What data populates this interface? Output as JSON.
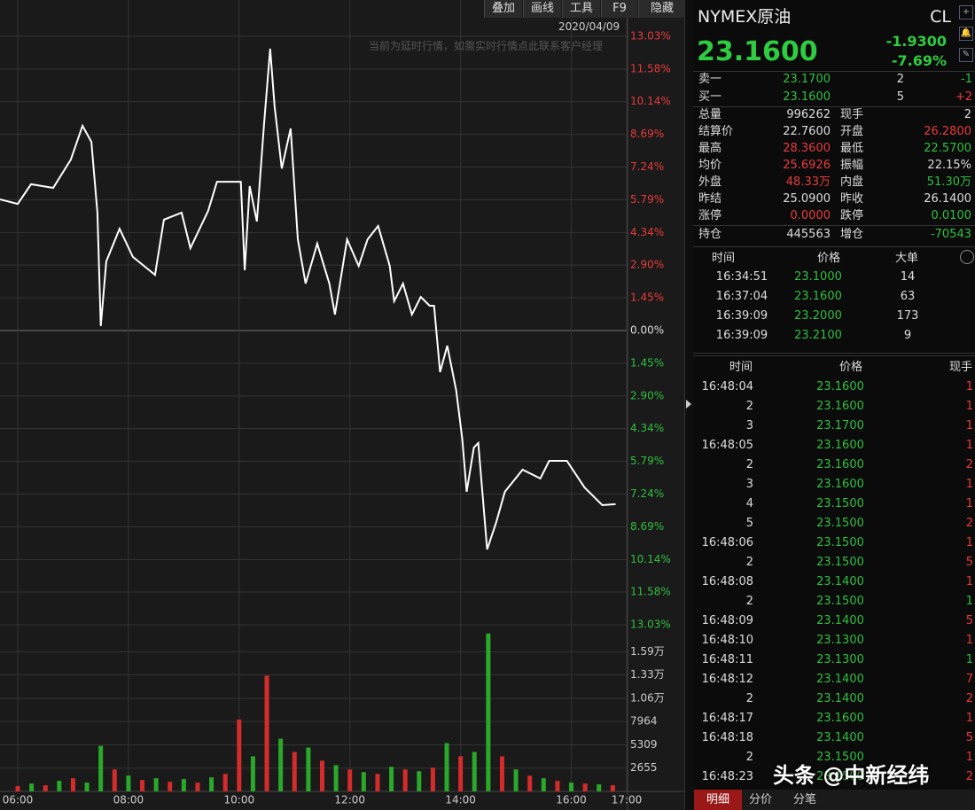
{
  "toolbar": [
    "叠加",
    "画线",
    "工具",
    "F9",
    "隐藏"
  ],
  "date": "2020/04/09",
  "notice": "当前为延时行情，如需实时行情点此联系客户经理",
  "quote": {
    "name": "NYMEX原油",
    "code": "CL",
    "price": "23.1600",
    "change": "-1.9300",
    "change_pct": "-7.69%"
  },
  "orderbook": [
    {
      "label": "卖一",
      "price": "23.1700",
      "vol": "2",
      "delta": "-1"
    },
    {
      "label": "买一",
      "price": "23.1600",
      "vol": "5",
      "delta": "+2"
    }
  ],
  "stats": [
    [
      {
        "label": "总量",
        "value": "996262",
        "color": "#dddddd"
      },
      {
        "label": "现手",
        "value": "2",
        "color": "#dddddd"
      }
    ],
    [
      {
        "label": "结算价",
        "value": "22.7600",
        "color": "#dddddd"
      },
      {
        "label": "开盘",
        "value": "26.2800",
        "color": "#e83a3a"
      }
    ],
    [
      {
        "label": "最高",
        "value": "28.3600",
        "color": "#e83a3a"
      },
      {
        "label": "最低",
        "value": "22.5700",
        "color": "#2fbf3f"
      }
    ],
    [
      {
        "label": "均价",
        "value": "25.6926",
        "color": "#e83a3a"
      },
      {
        "label": "振幅",
        "value": "22.15%",
        "color": "#dddddd"
      }
    ],
    [
      {
        "label": "外盘",
        "value": "48.33万",
        "color": "#e83a3a"
      },
      {
        "label": "内盘",
        "value": "51.30万",
        "color": "#2fbf3f"
      }
    ],
    [
      {
        "label": "昨结",
        "value": "25.0900",
        "color": "#dddddd"
      },
      {
        "label": "昨收",
        "value": "26.1400",
        "color": "#dddddd"
      }
    ],
    [
      {
        "label": "涨停",
        "value": "0.0000",
        "color": "#e83a3a"
      },
      {
        "label": "跌停",
        "value": "0.0100",
        "color": "#2fbf3f"
      }
    ],
    [
      {
        "label": "持仓",
        "value": "445563",
        "color": "#dddddd"
      },
      {
        "label": "增仓",
        "value": "-70543",
        "color": "#2fbf3f"
      }
    ]
  ],
  "big_orders": {
    "headers": [
      "时间",
      "价格",
      "大单"
    ],
    "rows": [
      [
        "16:34:51",
        "23.1000",
        "14"
      ],
      [
        "16:37:04",
        "23.1600",
        "63"
      ],
      [
        "16:39:09",
        "23.2000",
        "173"
      ],
      [
        "16:39:09",
        "23.2100",
        "9"
      ]
    ]
  },
  "trades": {
    "headers": [
      "时间",
      "价格",
      "现手"
    ],
    "rows": [
      [
        "16:48:04",
        "23.1600",
        "1",
        "#e83a3a"
      ],
      [
        "2",
        "23.1600",
        "1",
        "#e83a3a"
      ],
      [
        "3",
        "23.1700",
        "1",
        "#e83a3a"
      ],
      [
        "16:48:05",
        "23.1600",
        "1",
        "#e83a3a"
      ],
      [
        "2",
        "23.1600",
        "2",
        "#e83a3a"
      ],
      [
        "3",
        "23.1600",
        "1",
        "#e83a3a"
      ],
      [
        "4",
        "23.1500",
        "1",
        "#e83a3a"
      ],
      [
        "5",
        "23.1500",
        "2",
        "#e83a3a"
      ],
      [
        "16:48:06",
        "23.1500",
        "1",
        "#e83a3a"
      ],
      [
        "2",
        "23.1500",
        "5",
        "#e83a3a"
      ],
      [
        "16:48:08",
        "23.1400",
        "1",
        "#e83a3a"
      ],
      [
        "2",
        "23.1500",
        "1",
        "#2fbf3f"
      ],
      [
        "16:48:09",
        "23.1400",
        "5",
        "#e83a3a"
      ],
      [
        "16:48:10",
        "23.1300",
        "1",
        "#e83a3a"
      ],
      [
        "16:48:11",
        "23.1300",
        "1",
        "#2fbf3f"
      ],
      [
        "16:48:12",
        "23.1400",
        "7",
        "#e83a3a"
      ],
      [
        "2",
        "23.1400",
        "2",
        "#e83a3a"
      ],
      [
        "16:48:17",
        "23.1600",
        "1",
        "#e83a3a"
      ],
      [
        "16:48:18",
        "23.1400",
        "5",
        "#e83a3a"
      ],
      [
        "2",
        "23.1500",
        "1",
        "#e83a3a"
      ],
      [
        "16:48:23",
        "23.1500",
        "2",
        "#e83a3a"
      ]
    ]
  },
  "tabs": [
    "明细",
    "分价",
    "分笔"
  ],
  "watermark": "头条 @中新经纬",
  "chart_data": [
    {
      "type": "line",
      "color": "#ffffff",
      "x": [
        5.68,
        6.0,
        6.24,
        6.64,
        6.96,
        7.17,
        7.33,
        7.44,
        7.5,
        7.6,
        7.84,
        8.08,
        8.48,
        8.64,
        8.96,
        9.12,
        9.44,
        9.6,
        9.84,
        10.03,
        10.1,
        10.19,
        10.32,
        10.45,
        10.56,
        10.64,
        10.77,
        10.93,
        11.06,
        11.2,
        11.41,
        11.63,
        11.73,
        11.95,
        12.16,
        12.32,
        12.51,
        12.72,
        12.8,
        12.96,
        13.12,
        13.28,
        13.44,
        13.52,
        13.63,
        13.76,
        13.92,
        14.03,
        14.11,
        14.24,
        14.32,
        14.48,
        14.64,
        14.8,
        15.12,
        15.44,
        15.6,
        15.92,
        16.24,
        16.56,
        16.8
      ],
      "values": [
        5.81,
        5.61,
        6.48,
        6.32,
        7.57,
        9.07,
        8.36,
        5.22,
        0.2,
        3.06,
        4.51,
        3.26,
        2.47,
        4.91,
        5.22,
        3.65,
        5.3,
        6.59,
        6.59,
        6.59,
        2.67,
        6.4,
        4.83,
        9.14,
        12.48,
        9.93,
        7.18,
        8.95,
        4.04,
        2.08,
        3.85,
        2.08,
        0.71,
        4.04,
        2.86,
        4.04,
        4.63,
        2.86,
        1.3,
        2.08,
        0.71,
        1.49,
        1.1,
        1.1,
        -1.84,
        -0.67,
        -2.63,
        -4.79,
        -7.14,
        -5.18,
        -4.98,
        -9.69,
        -8.52,
        -7.14,
        -6.16,
        -6.55,
        -5.77,
        -5.77,
        -6.95,
        -7.73,
        -7.69
      ],
      "xlim": [
        5.68,
        17.0
      ],
      "xticks": [
        {
          "value": 6,
          "label": "06:00"
        },
        {
          "value": 8,
          "label": "08:00"
        },
        {
          "value": 10,
          "label": "10:00"
        },
        {
          "value": 12,
          "label": "12:00"
        },
        {
          "value": 14,
          "label": "14:00"
        },
        {
          "value": 16,
          "label": "16:00"
        },
        {
          "value": 17,
          "label": "17:00"
        }
      ],
      "ylim": [
        -13.03,
        13.03
      ],
      "yticks": [
        {
          "value": 13.03,
          "label": "13.03%"
        },
        {
          "value": 11.58,
          "label": "11.58%"
        },
        {
          "value": 10.14,
          "label": "10.14%"
        },
        {
          "value": 8.69,
          "label": "8.69%"
        },
        {
          "value": 7.24,
          "label": "7.24%"
        },
        {
          "value": 5.79,
          "label": "5.79%"
        },
        {
          "value": 4.34,
          "label": "4.34%"
        },
        {
          "value": 2.9,
          "label": "2.90%"
        },
        {
          "value": 1.45,
          "label": "1.45%"
        },
        {
          "value": 0,
          "label": "0.00%"
        },
        {
          "value": -1.45,
          "label": "1.45%"
        },
        {
          "value": -2.9,
          "label": "2.90%"
        },
        {
          "value": -4.34,
          "label": "4.34%"
        },
        {
          "value": -5.79,
          "label": "5.79%"
        },
        {
          "value": -7.24,
          "label": "7.24%"
        },
        {
          "value": -8.69,
          "label": "8.69%"
        },
        {
          "value": -10.14,
          "label": "10.14%"
        },
        {
          "value": -11.58,
          "label": "11.58%"
        },
        {
          "value": -13.03,
          "label": "13.03%"
        }
      ],
      "grid": true
    },
    {
      "type": "bar",
      "x": [
        6.0,
        6.25,
        6.5,
        6.75,
        7.0,
        7.25,
        7.5,
        7.75,
        8.0,
        8.25,
        8.5,
        8.75,
        9.0,
        9.25,
        9.5,
        9.75,
        10.0,
        10.25,
        10.5,
        10.75,
        11.0,
        11.25,
        11.5,
        11.75,
        12.0,
        12.25,
        12.5,
        12.75,
        13.0,
        13.25,
        13.5,
        13.75,
        14.0,
        14.25,
        14.5,
        14.75,
        15.0,
        15.25,
        15.5,
        15.75,
        16.0,
        16.25,
        16.5,
        16.75
      ],
      "values": [
        600,
        900,
        700,
        1200,
        1500,
        1000,
        5200,
        2500,
        1800,
        1300,
        1500,
        1100,
        1400,
        1000,
        1600,
        2000,
        8200,
        4000,
        13200,
        6000,
        4500,
        5000,
        3500,
        3000,
        2500,
        2200,
        2000,
        2800,
        2500,
        2300,
        2700,
        5500,
        4000,
        4500,
        18000,
        4000,
        2500,
        1800,
        1500,
        1200,
        1000,
        900,
        800,
        700
      ],
      "colors": [
        "#d42b2b",
        "#2aa82a",
        "#d42b2b",
        "#2aa82a",
        "#d42b2b",
        "#2aa82a",
        "#2aa82a",
        "#d42b2b",
        "#2aa82a",
        "#d42b2b",
        "#2aa82a",
        "#d42b2b",
        "#2aa82a",
        "#d42b2b",
        "#2aa82a",
        "#d42b2b",
        "#d42b2b",
        "#2aa82a",
        "#d42b2b",
        "#2aa82a",
        "#d42b2b",
        "#2aa82a",
        "#d42b2b",
        "#2aa82a",
        "#d42b2b",
        "#2aa82a",
        "#d42b2b",
        "#2aa82a",
        "#d42b2b",
        "#2aa82a",
        "#d42b2b",
        "#2aa82a",
        "#d42b2b",
        "#2aa82a",
        "#2aa82a",
        "#d42b2b",
        "#2aa82a",
        "#d42b2b",
        "#2aa82a",
        "#d42b2b",
        "#2aa82a",
        "#d42b2b",
        "#2aa82a",
        "#d42b2b"
      ],
      "ylim": [
        0,
        19000
      ],
      "yticks": [
        2655,
        5309,
        7964,
        {
          "value": 10600,
          "label": "1.06万"
        },
        {
          "value": 13300,
          "label": "1.33万"
        },
        {
          "value": 15900,
          "label": "1.59万"
        }
      ],
      "grid": true
    }
  ]
}
